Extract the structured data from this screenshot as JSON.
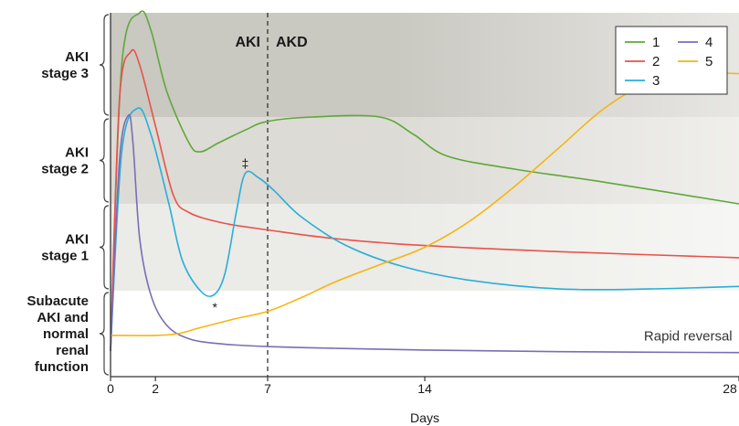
{
  "chart_data": {
    "type": "line",
    "xlabel": "Days",
    "xticks": [
      0,
      2,
      7,
      14,
      28
    ],
    "xlim": [
      0,
      28
    ],
    "bands": [
      {
        "label": "AKI stage 3",
        "color": "#c9c8c1"
      },
      {
        "label": "AKI stage 2",
        "color": "#dcdbd5"
      },
      {
        "label": "AKI stage 1",
        "color": "#ebebe7"
      },
      {
        "label": "Subacute AKI and normal renal function",
        "color": "#ffffff"
      }
    ],
    "band_label_lines": [
      [
        "AKI",
        "stage 3"
      ],
      [
        "AKI",
        "stage 2"
      ],
      [
        "AKI",
        "stage 1"
      ],
      [
        "Subacute",
        "AKI and",
        "normal",
        "renal",
        "function"
      ]
    ],
    "divider": {
      "x": 7,
      "left_label": "AKI",
      "right_label": "AKD"
    },
    "legend": {
      "position": "top-right",
      "entries": [
        "1",
        "2",
        "3",
        "4",
        "5"
      ]
    },
    "series": [
      {
        "name": "1",
        "color": "#5ea83a",
        "points": [
          [
            0,
            0.3
          ],
          [
            0.5,
            3.6
          ],
          [
            1.3,
            4.2
          ],
          [
            1.8,
            4.0
          ],
          [
            2.5,
            3.3
          ],
          [
            3.5,
            2.7
          ],
          [
            4,
            2.6
          ],
          [
            4.8,
            2.7
          ],
          [
            6,
            2.85
          ],
          [
            7,
            2.95
          ],
          [
            9,
            3.0
          ],
          [
            12,
            3.0
          ],
          [
            13.5,
            2.8
          ],
          [
            15,
            2.55
          ],
          [
            18,
            2.4
          ],
          [
            22,
            2.25
          ],
          [
            28,
            2.0
          ]
        ]
      },
      {
        "name": "2",
        "color": "#e8524a",
        "points": [
          [
            0,
            0.3
          ],
          [
            0.4,
            3.2
          ],
          [
            0.9,
            3.75
          ],
          [
            1.3,
            3.6
          ],
          [
            2,
            2.9
          ],
          [
            2.8,
            2.1
          ],
          [
            3.5,
            1.9
          ],
          [
            5,
            1.78
          ],
          [
            7,
            1.7
          ],
          [
            10,
            1.6
          ],
          [
            14,
            1.52
          ],
          [
            20,
            1.45
          ],
          [
            28,
            1.38
          ]
        ]
      },
      {
        "name": "3",
        "color": "#2aaed8",
        "points": [
          [
            0,
            0.3
          ],
          [
            0.5,
            2.6
          ],
          [
            1.2,
            3.1
          ],
          [
            1.8,
            2.8
          ],
          [
            2.6,
            2.0
          ],
          [
            3.2,
            1.35
          ],
          [
            4.0,
            1.0
          ],
          [
            4.6,
            0.95
          ],
          [
            5.1,
            1.2
          ],
          [
            5.6,
            1.9
          ],
          [
            6.0,
            2.35
          ],
          [
            6.6,
            2.3
          ],
          [
            7.3,
            2.15
          ],
          [
            8.5,
            1.85
          ],
          [
            10.5,
            1.52
          ],
          [
            13,
            1.28
          ],
          [
            16,
            1.12
          ],
          [
            20,
            1.02
          ],
          [
            24,
            1.02
          ],
          [
            28,
            1.05
          ]
        ]
      },
      {
        "name": "4",
        "color": "#7b6db4",
        "points": [
          [
            0,
            0.3
          ],
          [
            0.4,
            2.5
          ],
          [
            0.8,
            3.02
          ],
          [
            1.0,
            2.7
          ],
          [
            1.3,
            1.6
          ],
          [
            1.8,
            0.95
          ],
          [
            2.5,
            0.6
          ],
          [
            3.5,
            0.44
          ],
          [
            5,
            0.38
          ],
          [
            7,
            0.35
          ],
          [
            10,
            0.33
          ],
          [
            14,
            0.31
          ],
          [
            20,
            0.29
          ],
          [
            28,
            0.28
          ]
        ]
      },
      {
        "name": "5",
        "color": "#f5b512",
        "points": [
          [
            0,
            0.48
          ],
          [
            2,
            0.48
          ],
          [
            3,
            0.5
          ],
          [
            4,
            0.57
          ],
          [
            5.5,
            0.67
          ],
          [
            7,
            0.76
          ],
          [
            8.5,
            0.92
          ],
          [
            10,
            1.1
          ],
          [
            12,
            1.3
          ],
          [
            14,
            1.5
          ],
          [
            16,
            1.8
          ],
          [
            18,
            2.2
          ],
          [
            20,
            2.65
          ],
          [
            22,
            3.1
          ],
          [
            24,
            3.4
          ],
          [
            26,
            3.5
          ],
          [
            28,
            3.5
          ]
        ]
      }
    ],
    "annotations": [
      {
        "text": "*",
        "x": 4.65,
        "y": 0.82
      },
      {
        "text": "‡",
        "x": 6.0,
        "y": 2.48
      },
      {
        "text": "Rapid reversal",
        "x": 27.7,
        "y": 0.38
      }
    ]
  }
}
